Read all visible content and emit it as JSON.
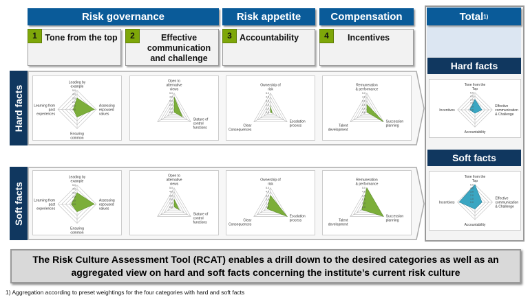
{
  "headers": {
    "risk_governance": "Risk governance",
    "risk_appetite": "Risk appetite",
    "compensation": "Compensation",
    "total": "Total",
    "total_sup": "1)"
  },
  "categories": [
    {
      "num": "1",
      "label": "Tone from the top"
    },
    {
      "num": "2",
      "label": "Effective communication and challenge"
    },
    {
      "num": "3",
      "label": "Accountability"
    },
    {
      "num": "4",
      "label": "Incentives"
    }
  ],
  "rows": {
    "hard": "Hard facts",
    "soft": "Soft facts"
  },
  "colors": {
    "header_blue": "#0a5b99",
    "dark_blue": "#10375f",
    "number_green": "#7ea709",
    "radar_green": "#7cae3a",
    "radar_teal": "#3aa6c2"
  },
  "scale_ticks": [
    "0.0",
    "1.0",
    "2.0",
    "3.0",
    "4.0",
    "5.0"
  ],
  "chart_data": [
    {
      "id": "hard-1",
      "type": "radar",
      "axes": [
        "Leading by example",
        "Assessing espoused values",
        "Ensuring common understanding",
        "Learning from past experiences"
      ],
      "values": [
        3,
        4.5,
        2,
        1
      ],
      "range": [
        0,
        5
      ]
    },
    {
      "id": "hard-2",
      "type": "radar",
      "axes": [
        "Open to alternative views",
        "Stature of control functions",
        ""
      ],
      "values": [
        4,
        2.5,
        0
      ],
      "range": [
        0,
        5
      ]
    },
    {
      "id": "hard-3",
      "type": "radar",
      "axes": [
        "Ownership of risk",
        "Escalation process",
        "Clear Consequences"
      ],
      "values": [
        1.5,
        0.5,
        0
      ],
      "range": [
        0,
        5
      ]
    },
    {
      "id": "hard-4",
      "type": "radar",
      "axes": [
        "Remuneration & performance",
        "Succession planning",
        "Talent development"
      ],
      "values": [
        2,
        5,
        0
      ],
      "range": [
        0,
        5
      ]
    },
    {
      "id": "soft-1",
      "type": "radar",
      "axes": [
        "Leading by example",
        "Assessing espoused values",
        "Ensuring common understanding",
        "Learning from past experiences"
      ],
      "values": [
        3,
        4.5,
        2,
        1.5
      ],
      "range": [
        0,
        5
      ]
    },
    {
      "id": "soft-2",
      "type": "radar",
      "axes": [
        "Open to alternative views",
        "Stature of control functions",
        ""
      ],
      "values": [
        2,
        1.5,
        0
      ],
      "range": [
        0,
        5
      ]
    },
    {
      "id": "soft-3",
      "type": "radar",
      "axes": [
        "Ownership of risk",
        "Escalation process",
        "Clear Consequences"
      ],
      "values": [
        3,
        5,
        1
      ],
      "range": [
        0,
        5
      ]
    },
    {
      "id": "soft-4",
      "type": "radar",
      "axes": [
        "Remuneration & performance",
        "Succession planning",
        "Talent development"
      ],
      "values": [
        5,
        5,
        1.5
      ],
      "range": [
        0,
        5
      ]
    },
    {
      "id": "total-hard",
      "type": "radar",
      "axes": [
        "Tone from the Top",
        "Effective communication & Challenge",
        "Accountability",
        "Incentives"
      ],
      "values": [
        3,
        2,
        1,
        1.5
      ],
      "range": [
        0,
        5
      ]
    },
    {
      "id": "total-soft",
      "type": "radar",
      "axes": [
        "Tone from the Top",
        "Effective communication & Challenge",
        "Accountability",
        "Incentives"
      ],
      "values": [
        5,
        2,
        2,
        4.5
      ],
      "range": [
        0,
        5
      ]
    }
  ],
  "summary": "The Risk Culture Assessment Tool (RCAT) enables a drill down to the desired categories as well as an aggregated view on hard and soft facts concerning the institute’s current risk culture",
  "footnote": "1) Aggregation according to preset weightings for the four categories with hard and soft facts"
}
